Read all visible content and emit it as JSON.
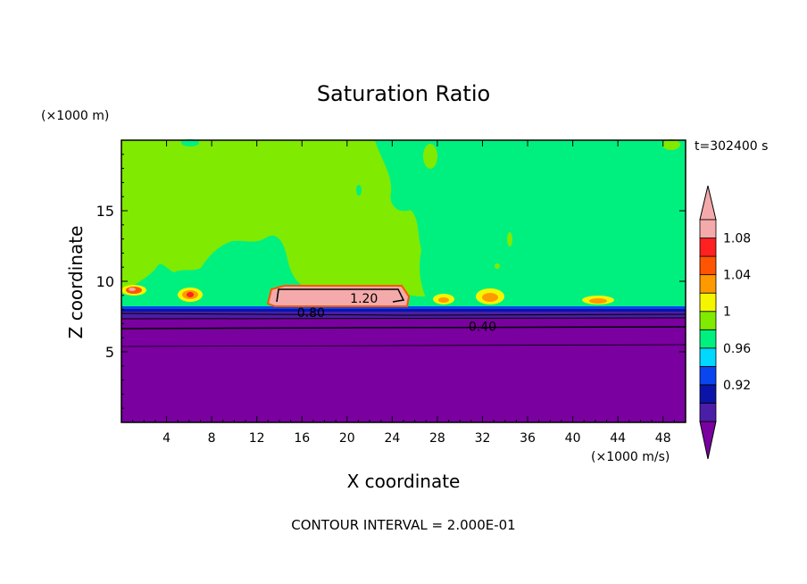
{
  "chart_data": {
    "type": "heatmap",
    "title": "Saturation Ratio",
    "xlabel": "X coordinate",
    "ylabel": "Z coordinate",
    "x_unit": "(×1000 m/s)",
    "y_unit": "(×1000 m)",
    "time_label": "t=302400 s",
    "footer": "CONTOUR INTERVAL = 2.000E-01",
    "xlim": [
      0,
      50
    ],
    "ylim": [
      0,
      20
    ],
    "x_ticks": [
      4,
      8,
      12,
      16,
      20,
      24,
      28,
      32,
      36,
      40,
      44,
      48
    ],
    "y_ticks": [
      5,
      10,
      15
    ],
    "contour_labels": [
      {
        "text": "1.20",
        "x": 21.5,
        "y": 8.8
      },
      {
        "text": "0.80",
        "x": 16.8,
        "y": 7.8
      },
      {
        "text": "0.40",
        "x": 32.0,
        "y": 6.8
      }
    ],
    "colorbar": {
      "levels": [
        0.9,
        0.92,
        0.94,
        0.96,
        0.98,
        1.0,
        1.02,
        1.04,
        1.06,
        1.08,
        1.1
      ],
      "labels": [
        "0.92",
        "0.96",
        "1",
        "1.04",
        "1.08"
      ],
      "colors": [
        "#4a1ea6",
        "#0b14a8",
        "#0a46f0",
        "#00d8ff",
        "#00f080",
        "#80ea00",
        "#f5f500",
        "#ff9900",
        "#ff5500",
        "#ff2020",
        "#f4aaaa"
      ],
      "under_color": "#7a00a0",
      "over_color": "#f4aaaa"
    },
    "regions": {
      "lower_layer_color": "#7a00a0",
      "upper_green_color": "#80ea00",
      "upper_teal_color": "#00f080",
      "inversion_top_z": 8.0
    }
  }
}
